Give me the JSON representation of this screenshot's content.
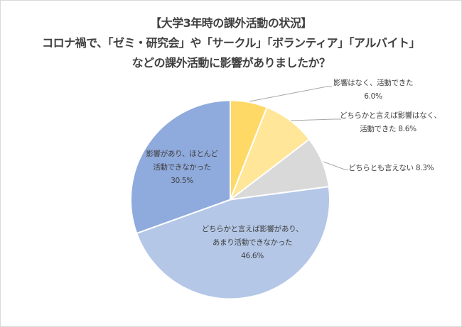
{
  "title": {
    "line1": "【大学3年時の課外活動の状況】",
    "line2": "コロナ禍で、「ゼミ・研究会」や「サークル」「ボランティア」「アルバイト」",
    "line3": "などの課外活動に影響がありましたか？"
  },
  "chart_data": {
    "type": "pie",
    "title": "【大学3年時の課外活動の状況】コロナ禍で、「ゼミ・研究会」や「サークル」「ボランティア」「アルバイト」などの課外活動に影響がありましたか？",
    "start_angle": "12 o'clock, clockwise",
    "categories": [
      "影響はなく、活動できた",
      "どちらかと言えば影響はなく、活動できた",
      "どちらとも言えない",
      "どちらかと言えば影響があり、あまり活動できなかった",
      "影響があり、ほとんど活動できなかった"
    ],
    "values": [
      6.0,
      8.6,
      8.3,
      46.6,
      30.5
    ],
    "unit": "%",
    "colors": [
      "#ffd966",
      "#ffe699",
      "#d9d9d9",
      "#b4c7e7",
      "#8faadc"
    ],
    "legend": "none (data labels)"
  },
  "labels": {
    "s0": {
      "l1": "影響はなく、活動できた",
      "l2": "6.0%"
    },
    "s1": {
      "l1": "どちらかと言えば影響はなく、",
      "l2": "活動できた 8.6%"
    },
    "s2": {
      "l1": "どちらとも言えない 8.3%"
    },
    "s3": {
      "l1": "どちらかと言えば影響があり、",
      "l2": "あまり活動できなかった",
      "l3": "46.6%"
    },
    "s4": {
      "l1": "影響があり、ほとんど",
      "l2": "活動できなかった",
      "l3": "30.5%"
    }
  }
}
